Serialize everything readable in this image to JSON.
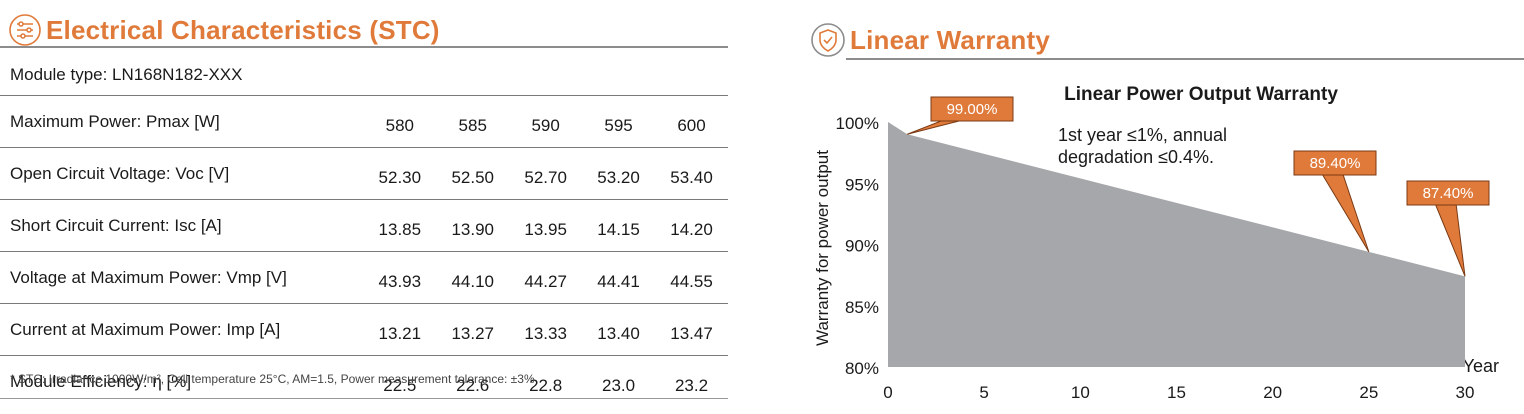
{
  "left": {
    "title": "Electrical Characteristics (STC)",
    "title_icon": "sliders-icon",
    "module_type": "Module type: LN168N182-XXX",
    "rows": [
      {
        "label": "Maximum Power: Pmax [W]",
        "values": [
          "580",
          "585",
          "590",
          "595",
          "600"
        ]
      },
      {
        "label": "Open Circuit Voltage: Voc [V]",
        "values": [
          "52.30",
          "52.50",
          "52.70",
          "53.20",
          "53.40"
        ]
      },
      {
        "label": "Short Circuit Current: Isc [A]",
        "values": [
          "13.85",
          "13.90",
          "13.95",
          "14.15",
          "14.20"
        ]
      },
      {
        "label": "Voltage at Maximum Power: Vmp [V]",
        "values": [
          "43.93",
          "44.10",
          "44.27",
          "44.41",
          "44.55"
        ]
      },
      {
        "label": "Current at Maximum Power: Imp [A]",
        "values": [
          "13.21",
          "13.27",
          "13.33",
          "13.40",
          "13.47"
        ]
      },
      {
        "label": "Module Efficiency: η [%]",
        "values": [
          "22.5",
          "22.6",
          "22.8",
          "23.0",
          "23.2"
        ]
      }
    ],
    "note": "* STC: Irradiance 1000W/m², Cell temperature 25°C, AM=1.5, Power measurement tolerance: ±3%"
  },
  "right": {
    "title": "Linear Warranty",
    "title_icon": "shield-check-icon"
  },
  "colors": {
    "accent": "#e07a3a",
    "area": "#a6a7aa"
  },
  "chart_data": {
    "type": "area",
    "title": "Linear Power Output Warranty",
    "xlabel": "Year",
    "ylabel": "Warranty for power output",
    "xlim": [
      0,
      30
    ],
    "ylim": [
      80,
      100
    ],
    "xticks": [
      "0",
      "5",
      "10",
      "15",
      "20",
      "25",
      "30"
    ],
    "yticks": [
      "80%",
      "85%",
      "90%",
      "95%",
      "100%"
    ],
    "x": [
      0,
      1,
      25,
      30
    ],
    "y": [
      100,
      99.0,
      89.4,
      87.4
    ],
    "annotation_text": [
      "1st year ≤1%, annual",
      "degradation ≤0.4%."
    ],
    "callouts": [
      {
        "label": "99.00%",
        "x": 1,
        "y": 99.0
      },
      {
        "label": "89.40%",
        "x": 25,
        "y": 89.4
      },
      {
        "label": "87.40%",
        "x": 30,
        "y": 87.4
      }
    ]
  }
}
